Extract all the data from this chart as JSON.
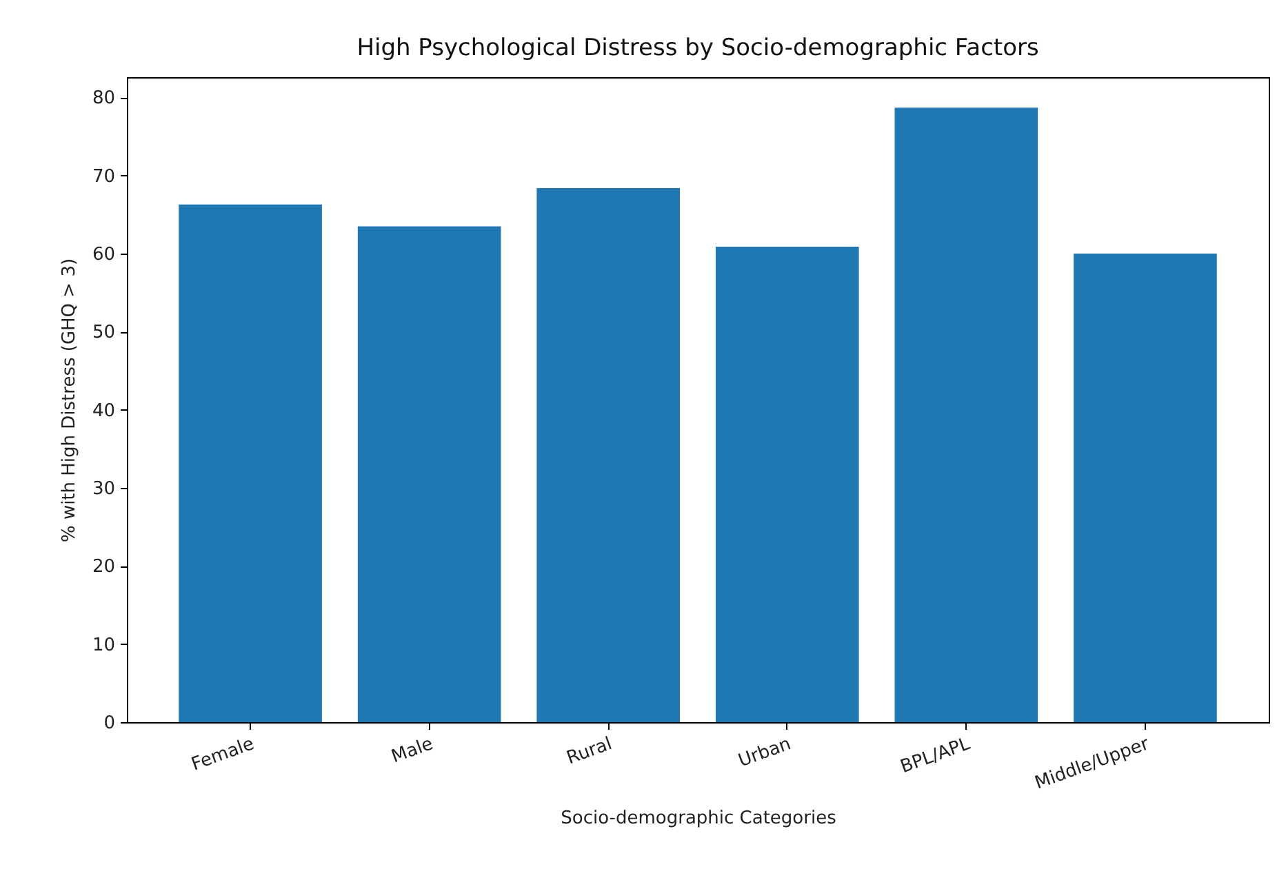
{
  "chart_data": {
    "type": "bar",
    "title": "High Psychological Distress by Socio-demographic Factors",
    "xlabel": "Socio-demographic Categories",
    "ylabel": "% with High Distress (GHQ > 3)",
    "categories": [
      "Female",
      "Male",
      "Rural",
      "Urban",
      "BPL/APL",
      "Middle/Upper"
    ],
    "values": [
      66.3,
      63.5,
      68.4,
      60.9,
      78.7,
      60.0
    ],
    "color": "#1f77b4",
    "ylim": [
      0,
      82.6
    ],
    "yticks": [
      0,
      10,
      20,
      30,
      40,
      50,
      60,
      70,
      80
    ],
    "grid": false
  }
}
